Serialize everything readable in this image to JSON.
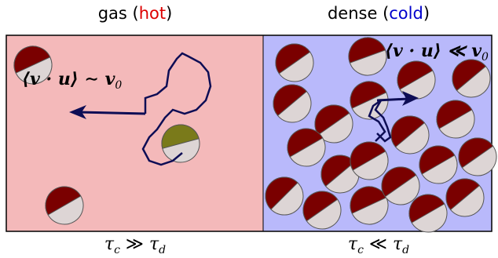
{
  "panels": [
    {
      "title": {
        "prefix": "gas (",
        "highlight": "hot",
        "suffix": ")"
      },
      "formula": {
        "text": "⟨v · u⟩ ∼ v",
        "sub": "0"
      },
      "caption": {
        "lhs": "τ",
        "lhs_sub": "c",
        "rel": " ≫ ",
        "rhs": "τ",
        "rhs_sub": "d"
      }
    },
    {
      "title": {
        "prefix": "dense (",
        "highlight": "cold",
        "suffix": ")"
      },
      "formula": {
        "text": "⟨v · u⟩ ≪ v",
        "sub": "0"
      },
      "caption": {
        "lhs": "τ",
        "lhs_sub": "c",
        "rel": " ≪ ",
        "rhs": "τ",
        "rhs_sub": "d"
      }
    }
  ]
}
